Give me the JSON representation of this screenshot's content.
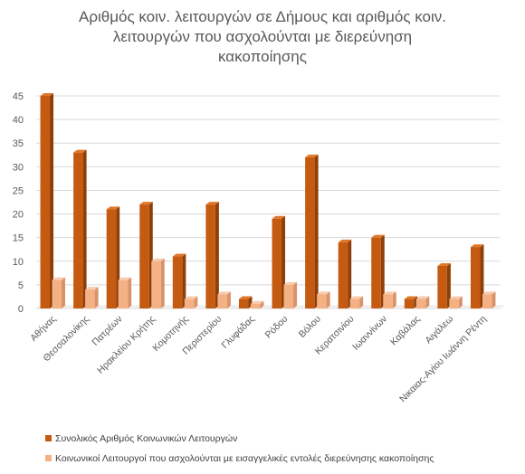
{
  "chart_data": {
    "type": "bar",
    "title": "Αριθμός κοιν. λειτουργών σε Δήμους και αριθμός κοιν.\nλειτουργών που ασχολούνται με διερεύνηση\nκακοποίησης",
    "categories": [
      "Αθήνας",
      "Θεσσαλονίκης",
      "Πατρέων",
      "Ηρακλείου Κρήτης",
      "Κομοτηνής",
      "Περιστερίου",
      "Γλυφάδας",
      "Ρόδου",
      "Βόλου",
      "Κερατσινίου",
      "Ιωαννίνων",
      "Καβάλας",
      "Αιγάλεω",
      "Νικαιας-Αγίου Ιωάννη Ρέντη"
    ],
    "series": [
      {
        "name": "Συνολικός Αριθμός Κοινωνικών Λειτουργών",
        "values": [
          45,
          33,
          21,
          22,
          11,
          22,
          2,
          19,
          32,
          14,
          15,
          2,
          9,
          13
        ],
        "color": "#C55A11",
        "color_light": "#E0782A",
        "color_dark": "#8E3F0A"
      },
      {
        "name": "Κοινωνικοί Λειτουργοί που ασχολούνται με εισαγγελικές εντολές διερεύνησης κακοποίησης",
        "values": [
          6,
          4,
          6,
          10,
          2,
          3,
          1,
          5,
          3,
          2,
          3,
          2,
          2,
          3
        ],
        "color": "#F4B183",
        "color_light": "#F8CBAD",
        "color_dark": "#D9926A"
      }
    ],
    "ylim": [
      0,
      45
    ],
    "yticks": [
      0,
      5,
      10,
      15,
      20,
      25,
      30,
      35,
      40,
      45
    ],
    "grid": true,
    "legend_position": "bottom",
    "style": "3d-column"
  }
}
